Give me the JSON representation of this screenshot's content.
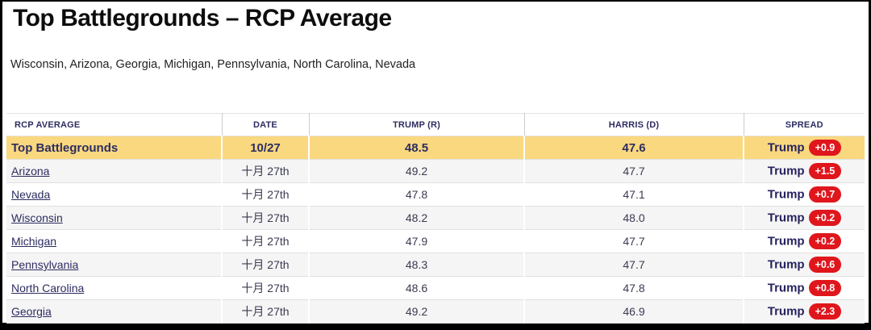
{
  "page": {
    "title": "Top Battlegrounds – RCP Average",
    "subtitle": "Wisconsin, Arizona, Georgia, Michigan, Pennsylvania, North Carolina, Nevada"
  },
  "table": {
    "columns": [
      "RCP Average",
      "Date",
      "Trump (R)",
      "Harris (D)",
      "Spread"
    ],
    "highlight": {
      "label": "Top Battlegrounds",
      "date": "10/27",
      "trump": "48.5",
      "harris": "47.6",
      "spread_winner": "Trump",
      "spread_margin": "+0.9"
    },
    "rows": [
      {
        "state": "Arizona",
        "date": "十月 27th",
        "trump": "49.2",
        "harris": "47.7",
        "spread_winner": "Trump",
        "spread_margin": "+1.5"
      },
      {
        "state": "Nevada",
        "date": "十月 27th",
        "trump": "47.8",
        "harris": "47.1",
        "spread_winner": "Trump",
        "spread_margin": "+0.7"
      },
      {
        "state": "Wisconsin",
        "date": "十月 27th",
        "trump": "48.2",
        "harris": "48.0",
        "spread_winner": "Trump",
        "spread_margin": "+0.2"
      },
      {
        "state": "Michigan",
        "date": "十月 27th",
        "trump": "47.9",
        "harris": "47.7",
        "spread_winner": "Trump",
        "spread_margin": "+0.2"
      },
      {
        "state": "Pennsylvania",
        "date": "十月 27th",
        "trump": "48.3",
        "harris": "47.7",
        "spread_winner": "Trump",
        "spread_margin": "+0.6"
      },
      {
        "state": "North Carolina",
        "date": "十月 27th",
        "trump": "48.6",
        "harris": "47.8",
        "spread_winner": "Trump",
        "spread_margin": "+0.8"
      },
      {
        "state": "Georgia",
        "date": "十月 27th",
        "trump": "49.2",
        "harris": "46.9",
        "spread_winner": "Trump",
        "spread_margin": "+2.3"
      }
    ]
  },
  "colors": {
    "highlight_row": "#fad87f",
    "badge_red": "#e0161d",
    "navy_text": "#2d2d62",
    "frame_black": "#000000",
    "alt_row": "#f5f5f5"
  },
  "chart_data": {
    "type": "table",
    "title": "Top Battlegrounds – RCP Average",
    "columns": [
      "RCP Average",
      "Date",
      "Trump (R)",
      "Harris (D)",
      "Spread"
    ],
    "rows": [
      [
        "Top Battlegrounds",
        "10/27",
        48.5,
        47.6,
        "Trump +0.9"
      ],
      [
        "Arizona",
        "十月 27th",
        49.2,
        47.7,
        "Trump +1.5"
      ],
      [
        "Nevada",
        "十月 27th",
        47.8,
        47.1,
        "Trump +0.7"
      ],
      [
        "Wisconsin",
        "十月 27th",
        48.2,
        48.0,
        "Trump +0.2"
      ],
      [
        "Michigan",
        "十月 27th",
        47.9,
        47.7,
        "Trump +0.2"
      ],
      [
        "Pennsylvania",
        "十月 27th",
        48.3,
        47.7,
        "Trump +0.6"
      ],
      [
        "North Carolina",
        "十月 27th",
        48.6,
        47.8,
        "Trump +0.8"
      ],
      [
        "Georgia",
        "十月 27th",
        49.2,
        46.9,
        "Trump +2.3"
      ]
    ]
  }
}
